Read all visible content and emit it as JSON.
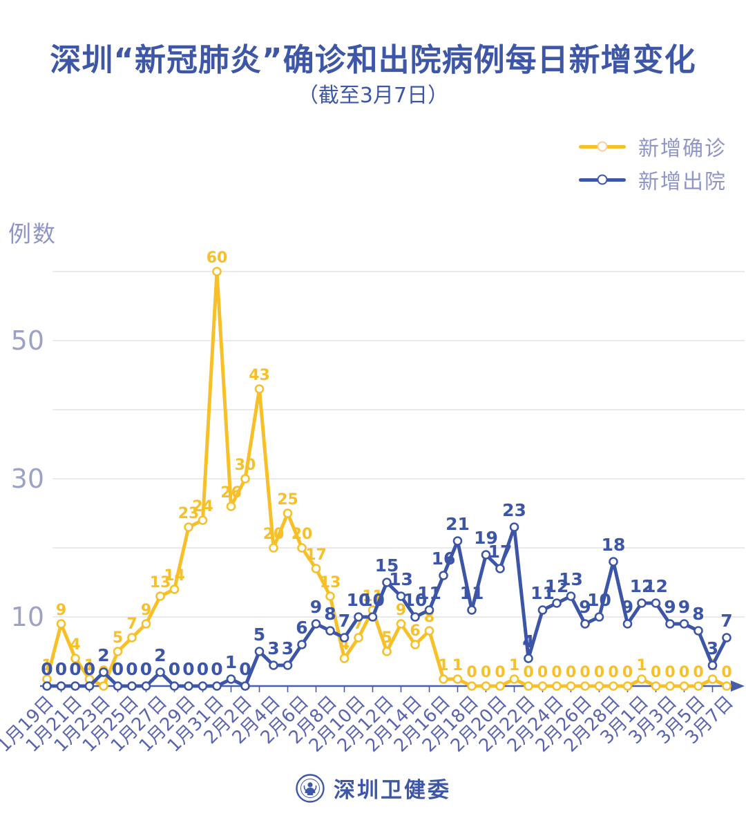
{
  "header": {
    "title": "深圳“新冠肺炎”确诊和出院病例每日新增变化",
    "subtitle": "（截至3月7日）"
  },
  "legend": {
    "items": [
      {
        "label": "新增确诊",
        "color": "#F7C028"
      },
      {
        "label": "新增出院",
        "color": "#3C55A6"
      }
    ]
  },
  "footer": {
    "org_name": "深圳卫健委",
    "logo_icon": "shenzhen-health-commission-logo"
  },
  "colors": {
    "title_blue": "#3D57A6",
    "confirmed_yellow": "#F7C028",
    "discharged_blue": "#3C55A6",
    "axis_blue": "#4A5CA8",
    "date_label": "#5A64AE",
    "y_tick_label": "#9CA2C6",
    "gridline": "#E4E4E8",
    "legend_text": "#8F95C9"
  },
  "chart_data": {
    "type": "line",
    "title": "深圳“新冠肺炎”确诊和出院病例每日新增变化",
    "subtitle": "（截至3月7日）",
    "ylabel": "例数",
    "xlabel": "",
    "grid": true,
    "legend_position": "top-right",
    "x": [
      "1月19日",
      "1月20日",
      "1月21日",
      "1月22日",
      "1月23日",
      "1月24日",
      "1月25日",
      "1月26日",
      "1月27日",
      "1月28日",
      "1月29日",
      "1月30日",
      "1月31日",
      "2月1日",
      "2月2日",
      "2月3日",
      "2月4日",
      "2月5日",
      "2月6日",
      "2月7日",
      "2月8日",
      "2月9日",
      "2月10日",
      "2月11日",
      "2月12日",
      "2月13日",
      "2月14日",
      "2月15日",
      "2月16日",
      "2月17日",
      "2月18日",
      "2月19日",
      "2月20日",
      "2月21日",
      "2月22日",
      "2月23日",
      "2月24日",
      "2月25日",
      "2月26日",
      "2月27日",
      "2月28日",
      "2月29日",
      "3月1日",
      "3月2日",
      "3月3日",
      "3月4日",
      "3月5日",
      "3月6日",
      "3月7日"
    ],
    "x_tick_labels": [
      "1月19日",
      "1月21日",
      "1月23日",
      "1月25日",
      "1月27日",
      "1月29日",
      "1月31日",
      "2月2日",
      "2月4日",
      "2月6日",
      "2月8日",
      "2月10日",
      "2月12日",
      "2月14日",
      "2月16日",
      "2月18日",
      "2月20日",
      "2月22日",
      "2月24日",
      "2月26日",
      "2月28日",
      "3月1日",
      "3月3日",
      "3月5日",
      "3月7日"
    ],
    "y_axis": {
      "ticks_labeled": [
        10,
        30,
        50
      ],
      "gridlines": [
        10,
        20,
        30,
        40,
        50,
        60
      ],
      "range": [
        0,
        62
      ]
    },
    "series": [
      {
        "name": "新增确诊",
        "color": "#F7C028",
        "values": [
          1,
          9,
          4,
          1,
          0,
          5,
          7,
          9,
          13,
          14,
          23,
          24,
          60,
          26,
          30,
          43,
          20,
          25,
          20,
          17,
          13,
          4,
          7,
          11,
          5,
          9,
          6,
          8,
          1,
          1,
          0,
          0,
          0,
          1,
          0,
          0,
          0,
          0,
          0,
          0,
          0,
          0,
          1,
          0,
          0,
          0,
          0,
          1,
          0
        ]
      },
      {
        "name": "新增出院",
        "color": "#3C55A6",
        "values": [
          0,
          0,
          0,
          0,
          2,
          0,
          0,
          0,
          2,
          0,
          0,
          0,
          0,
          1,
          0,
          5,
          3,
          3,
          6,
          9,
          8,
          7,
          10,
          10,
          15,
          13,
          10,
          11,
          16,
          21,
          11,
          19,
          17,
          23,
          4,
          11,
          12,
          13,
          9,
          10,
          18,
          9,
          12,
          12,
          9,
          9,
          8,
          3,
          7
        ]
      }
    ]
  }
}
